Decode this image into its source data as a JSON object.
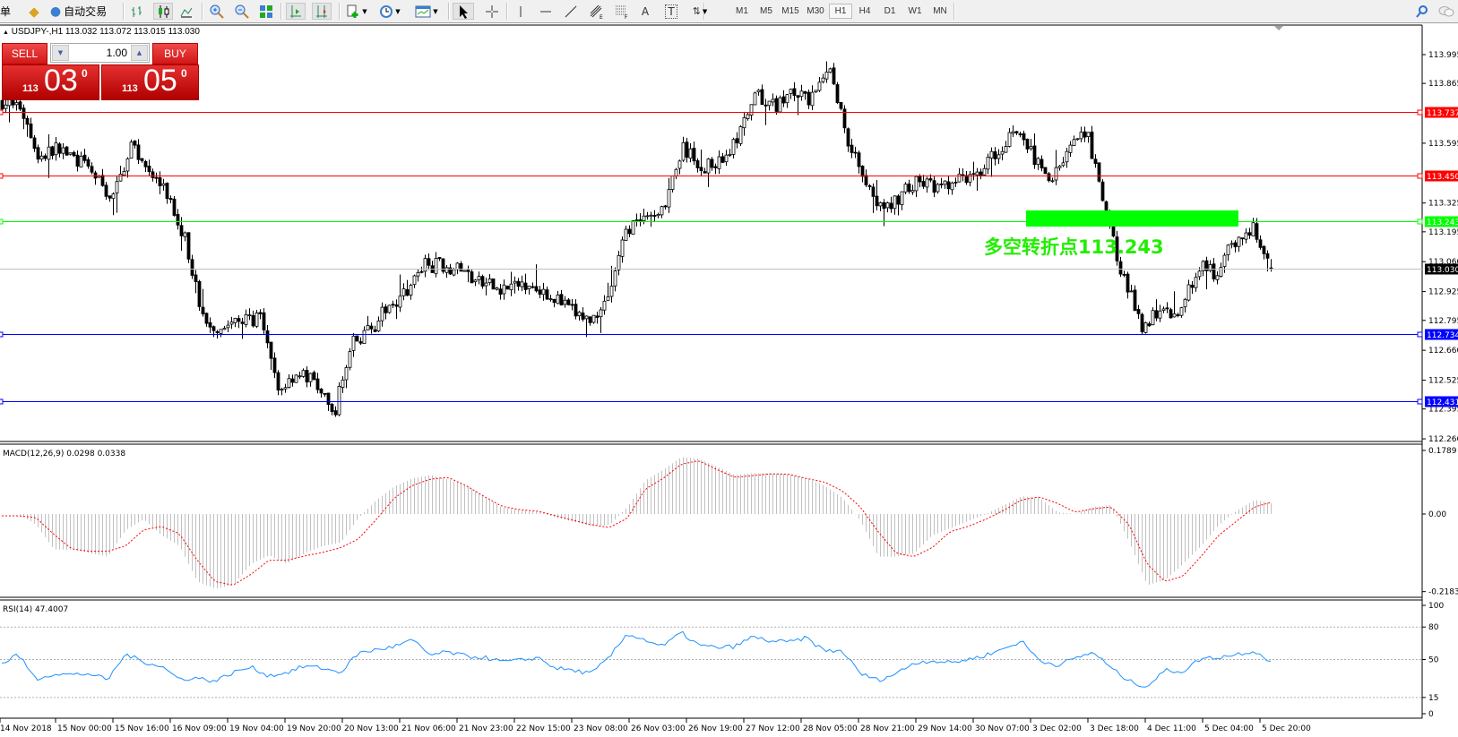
{
  "toolbar": {
    "items": [
      {
        "label": "单",
        "icon": "orders-text"
      },
      {
        "icon": "navigator-book-icon"
      },
      {
        "label": "自动交易",
        "icon": "auto-trading-icon"
      },
      {
        "icon": "bar-chart-icon"
      },
      {
        "icon": "candlestick-chart-icon",
        "selected": true
      },
      {
        "icon": "line-chart-icon"
      },
      {
        "icon": "zoom-in-icon"
      },
      {
        "icon": "zoom-out-icon"
      },
      {
        "icon": "tile-windows-icon"
      },
      {
        "icon": "auto-scroll-icon",
        "selected": true
      },
      {
        "icon": "chart-shift-icon",
        "selected": true
      },
      {
        "icon": "new-order-icon"
      },
      {
        "icon": "clock-periods-icon"
      },
      {
        "icon": "templates-icon"
      },
      {
        "icon": "cursor-icon",
        "selected": true
      },
      {
        "icon": "crosshair-icon"
      },
      {
        "icon": "vertical-line-icon"
      },
      {
        "icon": "horizontal-line-icon"
      },
      {
        "icon": "trendline-icon"
      },
      {
        "icon": "equidistant-channel-icon"
      },
      {
        "icon": "fibonacci-icon"
      },
      {
        "label": "A",
        "icon": "text-icon"
      },
      {
        "label": "T",
        "icon": "text-label-icon"
      },
      {
        "icon": "arrows-icon"
      }
    ],
    "timeframes": [
      "M1",
      "M5",
      "M15",
      "M30",
      "H1",
      "H4",
      "D1",
      "W1",
      "MN"
    ],
    "active_timeframe": "H1",
    "right_icons": [
      "search-icon",
      "chat-icon"
    ]
  },
  "chart": {
    "symbol_info": "USDJPY-,H1  113.032 113.072 113.015 113.030",
    "ohlc_last": {
      "open": 113.032,
      "high": 113.072,
      "low": 113.015,
      "close": 113.03
    },
    "one_click": {
      "sell_label": "SELL",
      "buy_label": "BUY",
      "volume": "1.00",
      "sell_price": {
        "small": "113",
        "big": "03",
        "sup": "0"
      },
      "buy_price": {
        "small": "113",
        "big": "05",
        "sup": "0"
      }
    },
    "annotation": "多空转折点113.243",
    "price_axis": [
      "113.995",
      "113.865",
      "113.595",
      "113.325",
      "113.195",
      "113.060",
      "112.925",
      "112.795",
      "112.660",
      "112.525",
      "112.395",
      "112.260"
    ],
    "levels": [
      {
        "price": "113.737",
        "color": "#ff0000"
      },
      {
        "price": "113.450",
        "color": "#ff0000"
      },
      {
        "price": "113.243",
        "color": "#00ff00"
      },
      {
        "price": "113.030",
        "color": "#000000",
        "line": "#c0c0c0",
        "bid": true
      },
      {
        "price": "112.734",
        "color": "#0000ff"
      },
      {
        "price": "112.431",
        "color": "#0000ff"
      }
    ],
    "close_samples": [
      113.784,
      113.76,
      113.53,
      113.57,
      113.53,
      113.45,
      113.34,
      113.59,
      113.47,
      113.36,
      113.15,
      112.77,
      112.77,
      112.79,
      112.81,
      112.475,
      112.56,
      112.52,
      112.36,
      112.69,
      112.75,
      112.855,
      112.94,
      113.045,
      113.045,
      113.02,
      112.96,
      112.94,
      112.95,
      112.96,
      112.9,
      112.835,
      112.79,
      112.92,
      113.215,
      113.235,
      113.32,
      113.57,
      113.49,
      113.51,
      113.615,
      113.805,
      113.76,
      113.826,
      113.784,
      113.93,
      113.615,
      113.425,
      113.277,
      113.383,
      113.425,
      113.383,
      113.425,
      113.467,
      113.55,
      113.657,
      113.55,
      113.425,
      113.573,
      113.636,
      113.277,
      112.98,
      112.77,
      112.855,
      112.81,
      113.045,
      113.003,
      113.15,
      113.215,
      113.03
    ],
    "time_axis": [
      "14 Nov 2018",
      "15 Nov 00:00",
      "15 Nov 16:00",
      "16 Nov 09:00",
      "19 Nov 04:00",
      "19 Nov 20:00",
      "20 Nov 13:00",
      "21 Nov 06:00",
      "21 Nov 23:00",
      "22 Nov 15:00",
      "23 Nov 08:00",
      "26 Nov 03:00",
      "26 Nov 19:00",
      "27 Nov 12:00",
      "28 Nov 05:00",
      "28 Nov 21:00",
      "29 Nov 14:00",
      "30 Nov 07:00",
      "3 Dec 02:00",
      "3 Dec 18:00",
      "4 Dec 11:00",
      "5 Dec 04:00",
      "5 Dec 20:00"
    ]
  },
  "macd": {
    "label": "MACD(12,26,9) 0.0298 0.0338",
    "axis": [
      "0.1789",
      "0.00",
      "-0.2183"
    ],
    "range": [
      -0.2183,
      0.1789
    ],
    "hist_color": "#c0c0c0",
    "signal_color": "#ff0000",
    "main_samples": [
      0,
      0,
      -0.03,
      -0.1,
      -0.1,
      -0.11,
      -0.12,
      -0.045,
      -0.015,
      -0.06,
      -0.09,
      -0.19,
      -0.21,
      -0.2,
      -0.14,
      -0.116,
      -0.14,
      -0.11,
      -0.09,
      -0.08,
      -0.01,
      0.04,
      0.078,
      0.1,
      0.11,
      0.098,
      0.08,
      0.05,
      0.018,
      0.01,
      0.006,
      -0.01,
      -0.022,
      -0.035,
      -0.03,
      0.02,
      0.095,
      0.125,
      0.16,
      0.155,
      0.133,
      0.11,
      0.115,
      0.115,
      0.112,
      0.1,
      0.08,
      0.045,
      -0.02,
      -0.12,
      -0.12,
      -0.11,
      -0.06,
      -0.04,
      -0.02,
      0.0,
      0.025,
      0.05,
      0.045,
      0.005,
      0.0,
      0.02,
      0.025,
      -0.08,
      -0.2,
      -0.185,
      -0.14,
      -0.09,
      -0.03,
      0.01,
      0.04,
      0.0298
    ],
    "signal_samples": [
      -0.005,
      -0.005,
      -0.01,
      -0.057,
      -0.098,
      -0.105,
      -0.105,
      -0.09,
      -0.045,
      -0.035,
      -0.055,
      -0.13,
      -0.19,
      -0.2,
      -0.17,
      -0.13,
      -0.13,
      -0.118,
      -0.108,
      -0.095,
      -0.07,
      -0.015,
      0.045,
      0.08,
      0.098,
      0.103,
      0.08,
      0.05,
      0.022,
      0.012,
      0.008,
      -0.005,
      -0.018,
      -0.03,
      -0.038,
      -0.012,
      0.07,
      0.1,
      0.14,
      0.15,
      0.125,
      0.103,
      0.108,
      0.113,
      0.112,
      0.1,
      0.09,
      0.065,
      0.02,
      -0.05,
      -0.11,
      -0.12,
      -0.095,
      -0.05,
      -0.035,
      -0.015,
      0.01,
      0.04,
      0.048,
      0.03,
      0.005,
      0.015,
      0.02,
      -0.03,
      -0.14,
      -0.19,
      -0.175,
      -0.12,
      -0.06,
      -0.02,
      0.02,
      0.0338
    ]
  },
  "rsi": {
    "label": "RSI(14) 47.4007",
    "axis": [
      "100",
      "80",
      "50",
      "15",
      "0"
    ],
    "levels": [
      80,
      50,
      15
    ],
    "color": "#1e90ff",
    "samples": [
      45,
      55,
      32,
      37,
      36,
      37,
      31,
      55,
      48,
      44,
      32,
      33,
      30,
      38,
      43,
      35,
      38,
      44,
      42,
      38,
      56,
      59,
      62,
      68,
      54,
      57,
      53,
      52,
      48,
      49,
      52,
      42,
      40,
      37,
      52,
      74,
      68,
      62,
      75,
      63,
      61,
      62,
      71,
      67,
      66,
      70,
      58,
      58,
      37,
      31,
      37,
      47,
      49,
      47,
      50,
      54,
      60,
      67,
      49,
      45,
      51,
      57,
      42,
      30,
      25,
      40,
      39,
      51,
      52,
      55,
      58,
      47.4007
    ]
  }
}
